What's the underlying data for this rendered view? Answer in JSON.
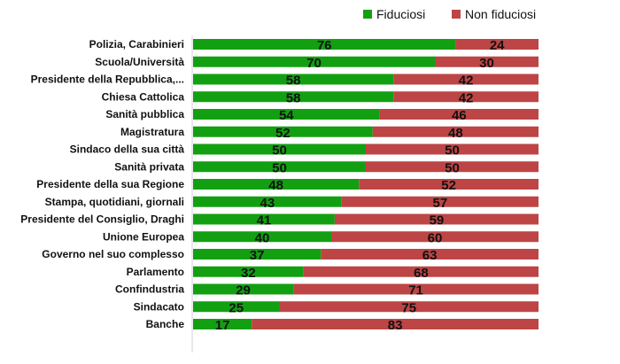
{
  "chart_data": {
    "type": "bar",
    "orientation": "horizontal",
    "stacked": true,
    "categories": [
      "Polizia, Carabinieri",
      "Scuola/Università",
      "Presidente della Repubblica,...",
      "Chiesa Cattolica",
      "Sanità pubblica",
      "Magistratura",
      "Sindaco della sua città",
      "Sanità privata",
      "Presidente della sua Regione",
      "Stampa, quotidiani, giornali",
      "Presidente del Consiglio, Draghi",
      "Unione Europea",
      "Governo nel suo complesso",
      "Parlamento",
      "Confindustria",
      "Sindacato",
      "Banche"
    ],
    "series": [
      {
        "name": "Fiduciosi",
        "color": "#12a012",
        "values": [
          76,
          70,
          58,
          58,
          54,
          52,
          50,
          50,
          48,
          43,
          41,
          40,
          37,
          32,
          29,
          25,
          17
        ]
      },
      {
        "name": "Non fiduciosi",
        "color": "#bd4545",
        "values": [
          24,
          30,
          42,
          42,
          46,
          48,
          50,
          50,
          52,
          57,
          59,
          60,
          63,
          68,
          71,
          75,
          83
        ]
      }
    ],
    "xlim": [
      0,
      100
    ],
    "legend": "top-right",
    "grid": false
  }
}
